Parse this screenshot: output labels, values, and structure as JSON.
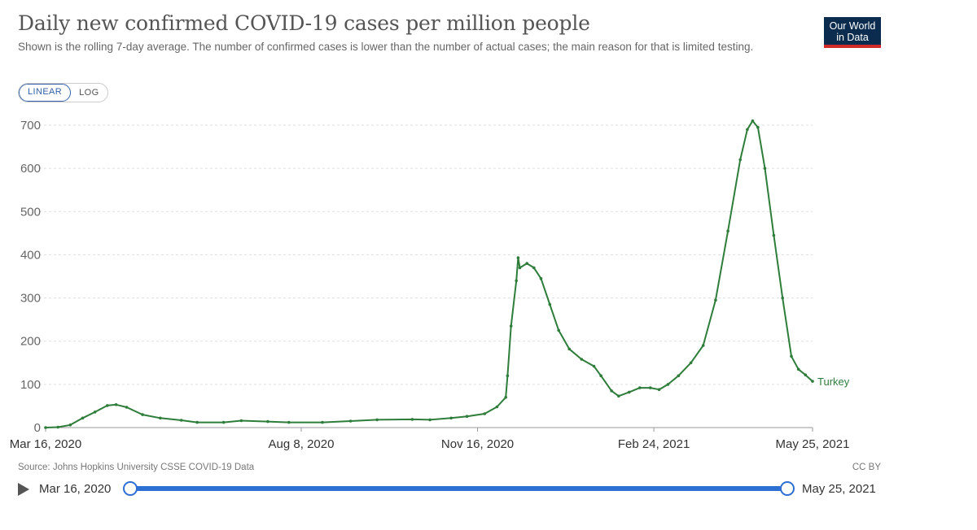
{
  "header": {
    "title": "Daily new confirmed COVID-19 cases per million people",
    "subtitle": "Shown is the rolling 7-day average. The number of confirmed cases is lower than the number of actual cases; the main reason for that is limited testing.",
    "logo_line1": "Our World",
    "logo_line2": "in Data"
  },
  "controls": {
    "linear_label": "LINEAR",
    "log_label": "LOG",
    "active": "linear"
  },
  "footer": {
    "source": "Source: Johns Hopkins University CSSE COVID-19 Data",
    "license": "CC BY"
  },
  "timeline": {
    "start_label": "Mar 16, 2020",
    "end_label": "May 25, 2021",
    "play_icon": "play-icon"
  },
  "colors": {
    "series": "#2e7d3a",
    "grid": "#dddddd",
    "accent": "#2d6fd3"
  },
  "chart_data": {
    "type": "line",
    "title": "Daily new confirmed COVID-19 cases per million people",
    "xlabel": "",
    "ylabel": "",
    "x_range": [
      "2020-03-16",
      "2021-05-25"
    ],
    "ylim": [
      0,
      700
    ],
    "y_ticks": [
      0,
      100,
      200,
      300,
      400,
      500,
      600,
      700
    ],
    "x_ticks": [
      {
        "date": "2020-03-16",
        "label": "Mar 16, 2020"
      },
      {
        "date": "2020-08-08",
        "label": "Aug 8, 2020"
      },
      {
        "date": "2020-11-16",
        "label": "Nov 16, 2020"
      },
      {
        "date": "2021-02-24",
        "label": "Feb 24, 2021"
      },
      {
        "date": "2021-05-25",
        "label": "May 25, 2021"
      }
    ],
    "grid": "horizontal dashed",
    "series": [
      {
        "name": "Turkey",
        "points": [
          [
            "2020-03-16",
            0
          ],
          [
            "2020-03-23",
            1
          ],
          [
            "2020-03-30",
            6
          ],
          [
            "2020-04-06",
            22
          ],
          [
            "2020-04-13",
            36
          ],
          [
            "2020-04-20",
            51
          ],
          [
            "2020-04-25",
            53
          ],
          [
            "2020-05-01",
            47
          ],
          [
            "2020-05-10",
            30
          ],
          [
            "2020-05-20",
            22
          ],
          [
            "2020-06-01",
            17
          ],
          [
            "2020-06-10",
            12
          ],
          [
            "2020-06-25",
            12
          ],
          [
            "2020-07-05",
            16
          ],
          [
            "2020-07-20",
            14
          ],
          [
            "2020-08-01",
            12
          ],
          [
            "2020-08-20",
            12
          ],
          [
            "2020-09-05",
            15
          ],
          [
            "2020-09-20",
            18
          ],
          [
            "2020-10-10",
            19
          ],
          [
            "2020-10-20",
            18
          ],
          [
            "2020-11-01",
            22
          ],
          [
            "2020-11-10",
            26
          ],
          [
            "2020-11-20",
            32
          ],
          [
            "2020-11-27",
            48
          ],
          [
            "2020-12-02",
            70
          ],
          [
            "2020-12-03",
            120
          ],
          [
            "2020-12-05",
            235
          ],
          [
            "2020-12-08",
            340
          ],
          [
            "2020-12-09",
            393
          ],
          [
            "2020-12-10",
            370
          ],
          [
            "2020-12-14",
            380
          ],
          [
            "2020-12-18",
            370
          ],
          [
            "2020-12-22",
            345
          ],
          [
            "2020-12-27",
            285
          ],
          [
            "2021-01-01",
            225
          ],
          [
            "2021-01-07",
            182
          ],
          [
            "2021-01-14",
            158
          ],
          [
            "2021-01-21",
            142
          ],
          [
            "2021-01-25",
            120
          ],
          [
            "2021-01-31",
            85
          ],
          [
            "2021-02-04",
            73
          ],
          [
            "2021-02-10",
            82
          ],
          [
            "2021-02-16",
            92
          ],
          [
            "2021-02-22",
            92
          ],
          [
            "2021-02-27",
            88
          ],
          [
            "2021-03-04",
            100
          ],
          [
            "2021-03-10",
            120
          ],
          [
            "2021-03-17",
            150
          ],
          [
            "2021-03-24",
            190
          ],
          [
            "2021-03-31",
            295
          ],
          [
            "2021-04-07",
            455
          ],
          [
            "2021-04-14",
            620
          ],
          [
            "2021-04-18",
            690
          ],
          [
            "2021-04-21",
            710
          ],
          [
            "2021-04-24",
            695
          ],
          [
            "2021-04-28",
            600
          ],
          [
            "2021-05-03",
            445
          ],
          [
            "2021-05-08",
            300
          ],
          [
            "2021-05-13",
            165
          ],
          [
            "2021-05-17",
            135
          ],
          [
            "2021-05-21",
            122
          ],
          [
            "2021-05-25",
            107
          ]
        ]
      }
    ]
  }
}
